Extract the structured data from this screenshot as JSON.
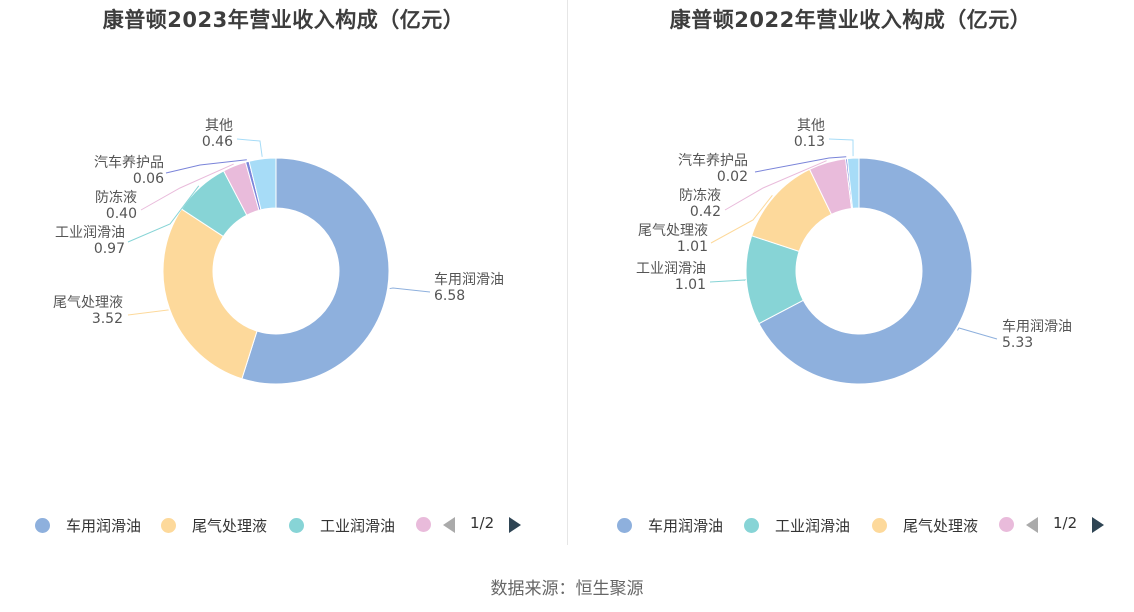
{
  "chart_data": [
    {
      "type": "pie",
      "style": "donut",
      "title": "康普顿2023年营业收入构成（亿元）",
      "slices": [
        {
          "name": "车用润滑油",
          "value": 6.58,
          "label_value": "6.58",
          "color": "#8eb0dd"
        },
        {
          "name": "尾气处理液",
          "value": 3.52,
          "label_value": "3.52",
          "color": "#fdd99b"
        },
        {
          "name": "工业润滑油",
          "value": 0.97,
          "label_value": "0.97",
          "color": "#87d4d6"
        },
        {
          "name": "防冻液",
          "value": 0.4,
          "label_value": "0.40",
          "color": "#e9bbdb"
        },
        {
          "name": "汽车养护品",
          "value": 0.06,
          "label_value": "0.06",
          "color": "#7a84d9"
        },
        {
          "name": "其他",
          "value": 0.46,
          "label_value": "0.46",
          "color": "#a7dcf7"
        }
      ],
      "legend": {
        "placement": "bottom",
        "items": [
          "车用润滑油",
          "尾气处理液",
          "工业润滑油"
        ],
        "page_label": "1/2"
      }
    },
    {
      "type": "pie",
      "style": "donut",
      "title": "康普顿2022年营业收入构成（亿元）",
      "slices": [
        {
          "name": "车用润滑油",
          "value": 5.33,
          "label_value": "5.33",
          "color": "#8eb0dd"
        },
        {
          "name": "工业润滑油",
          "value": 1.01,
          "label_value": "1.01",
          "color": "#87d4d6"
        },
        {
          "name": "尾气处理液",
          "value": 1.01,
          "label_value": "1.01",
          "color": "#fdd99b"
        },
        {
          "name": "防冻液",
          "value": 0.42,
          "label_value": "0.42",
          "color": "#e9bbdb"
        },
        {
          "name": "汽车养护品",
          "value": 0.02,
          "label_value": "0.02",
          "color": "#7a84d9"
        },
        {
          "name": "其他",
          "value": 0.13,
          "label_value": "0.13",
          "color": "#a7dcf7"
        }
      ],
      "legend": {
        "placement": "bottom",
        "items": [
          "车用润滑油",
          "工业润滑油",
          "尾气处理液"
        ],
        "page_label": "1/2"
      }
    }
  ],
  "source": "数据来源：恒生聚源"
}
